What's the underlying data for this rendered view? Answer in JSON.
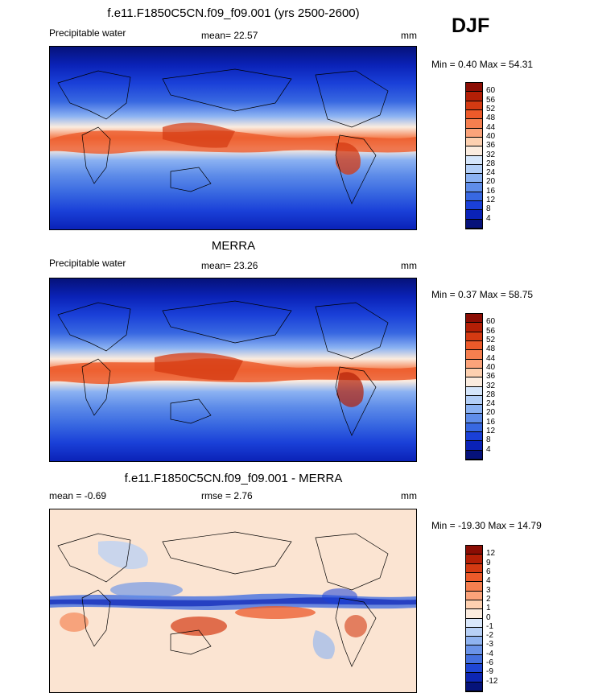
{
  "season": "DJF",
  "panels": [
    {
      "title": "f.e11.F1850C5CN.f09_f09.001 (yrs 2500-2600)",
      "left_label": "Precipitable water",
      "center_label": "mean=  22.57",
      "units": "mm",
      "minmax": "Min =   0.40 Max =  54.31",
      "colorbar_labels": [
        "60",
        "56",
        "52",
        "48",
        "44",
        "40",
        "36",
        "32",
        "28",
        "24",
        "20",
        "16",
        "12",
        "8",
        "4"
      ],
      "colors": [
        "#8b0d04",
        "#b41f06",
        "#d43a12",
        "#ec5a2a",
        "#f57f4f",
        "#fba37a",
        "#fdd0b0",
        "#fbecdf",
        "#d5e6fb",
        "#b3cff7",
        "#8bb2f2",
        "#5f8de9",
        "#3868e1",
        "#1a40d8",
        "#0a22b7",
        "#06127a"
      ]
    },
    {
      "title": "MERRA",
      "left_label": "Precipitable water",
      "center_label": "mean=  23.26",
      "units": "mm",
      "minmax": "Min =   0.37 Max =  58.75",
      "colorbar_labels": [
        "60",
        "56",
        "52",
        "48",
        "44",
        "40",
        "36",
        "32",
        "28",
        "24",
        "20",
        "16",
        "12",
        "8",
        "4"
      ],
      "colors": [
        "#8b0d04",
        "#b41f06",
        "#d43a12",
        "#ec5a2a",
        "#f57f4f",
        "#fba37a",
        "#fdd0b0",
        "#fbecdf",
        "#d5e6fb",
        "#b3cff7",
        "#8bb2f2",
        "#5f8de9",
        "#3868e1",
        "#1a40d8",
        "#0a22b7",
        "#06127a"
      ]
    },
    {
      "title": "f.e11.F1850C5CN.f09_f09.001 - MERRA",
      "left_label": "mean =  -0.69",
      "center_label": "rmse =   2.76",
      "units": "mm",
      "minmax": "Min = -19.30 Max =  14.79",
      "colorbar_labels": [
        "12",
        "9",
        "6",
        "4",
        "3",
        "2",
        "1",
        "0",
        "-1",
        "-2",
        "-3",
        "-4",
        "-6",
        "-9",
        "-12"
      ],
      "colors": [
        "#8b0d04",
        "#b41f06",
        "#d43a12",
        "#ec5a2a",
        "#f57f4f",
        "#fba37a",
        "#fdd0b0",
        "#fbecdf",
        "#d9e7fb",
        "#b7d0f6",
        "#8fb3f0",
        "#6a93e8",
        "#4470df",
        "#1f46d4",
        "#0d26b3",
        "#05137a"
      ]
    }
  ]
}
